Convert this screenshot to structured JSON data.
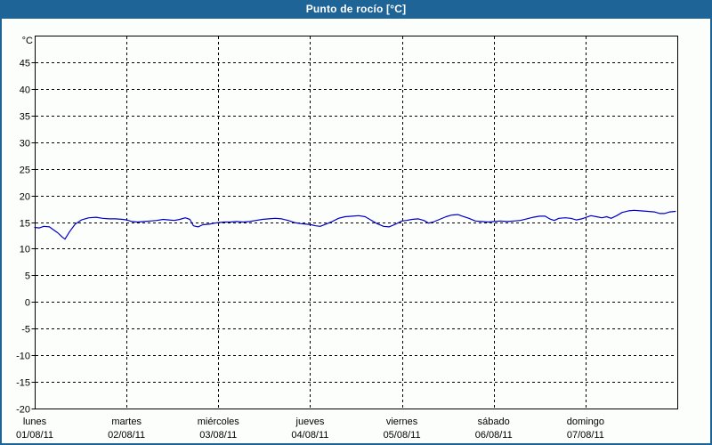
{
  "window": {
    "title": "Punto de rocío [°C]",
    "titlebar_color": "#1f6496",
    "border_color": "#1f6496",
    "background_color": "#fcfefb"
  },
  "chart_data": {
    "type": "line",
    "title": "Punto de rocío [°C]",
    "y_unit_label": "°C",
    "ylim": [
      -20,
      50
    ],
    "y_tick_step": 5,
    "y_tick_labels": [
      45,
      40,
      35,
      30,
      25,
      20,
      15,
      10,
      5,
      0,
      -5,
      -10,
      -15,
      -20
    ],
    "x_range": [
      0,
      7
    ],
    "x_categories": [
      {
        "name": "lunes",
        "date": "01/08/11"
      },
      {
        "name": "martes",
        "date": "02/08/11"
      },
      {
        "name": "miércoles",
        "date": "03/08/11"
      },
      {
        "name": "jueves",
        "date": "04/08/11"
      },
      {
        "name": "viernes",
        "date": "05/08/11"
      },
      {
        "name": "sábado",
        "date": "06/08/11"
      },
      {
        "name": "domingo",
        "date": "07/08/11"
      }
    ],
    "grid": "dashed",
    "legend": "none",
    "series": [
      {
        "name": "punto-de-rocio",
        "color": "#0000c8",
        "points": [
          [
            0.0,
            14.0
          ],
          [
            0.05,
            13.9
          ],
          [
            0.1,
            14.2
          ],
          [
            0.16,
            14.1
          ],
          [
            0.2,
            13.6
          ],
          [
            0.25,
            13.0
          ],
          [
            0.3,
            12.2
          ],
          [
            0.33,
            11.8
          ],
          [
            0.38,
            13.2
          ],
          [
            0.44,
            14.6
          ],
          [
            0.51,
            15.4
          ],
          [
            0.59,
            15.8
          ],
          [
            0.67,
            15.9
          ],
          [
            0.74,
            15.7
          ],
          [
            0.81,
            15.6
          ],
          [
            0.88,
            15.6
          ],
          [
            0.96,
            15.5
          ],
          [
            1.0,
            15.4
          ],
          [
            1.06,
            15.1
          ],
          [
            1.12,
            15.0
          ],
          [
            1.19,
            15.1
          ],
          [
            1.26,
            15.2
          ],
          [
            1.33,
            15.3
          ],
          [
            1.4,
            15.5
          ],
          [
            1.46,
            15.4
          ],
          [
            1.52,
            15.3
          ],
          [
            1.58,
            15.5
          ],
          [
            1.64,
            15.8
          ],
          [
            1.69,
            15.5
          ],
          [
            1.73,
            14.3
          ],
          [
            1.78,
            14.1
          ],
          [
            1.83,
            14.5
          ],
          [
            1.9,
            14.6
          ],
          [
            1.96,
            14.8
          ],
          [
            2.0,
            14.9
          ],
          [
            2.06,
            15.0
          ],
          [
            2.13,
            15.0
          ],
          [
            2.2,
            15.1
          ],
          [
            2.27,
            15.0
          ],
          [
            2.34,
            15.1
          ],
          [
            2.41,
            15.3
          ],
          [
            2.48,
            15.5
          ],
          [
            2.55,
            15.6
          ],
          [
            2.62,
            15.7
          ],
          [
            2.69,
            15.6
          ],
          [
            2.76,
            15.3
          ],
          [
            2.83,
            14.9
          ],
          [
            2.9,
            14.7
          ],
          [
            2.96,
            14.6
          ],
          [
            3.01,
            14.5
          ],
          [
            3.06,
            14.3
          ],
          [
            3.11,
            14.2
          ],
          [
            3.17,
            14.6
          ],
          [
            3.24,
            15.1
          ],
          [
            3.31,
            15.7
          ],
          [
            3.38,
            16.0
          ],
          [
            3.46,
            16.1
          ],
          [
            3.53,
            16.2
          ],
          [
            3.6,
            16.0
          ],
          [
            3.66,
            15.4
          ],
          [
            3.73,
            14.7
          ],
          [
            3.8,
            14.2
          ],
          [
            3.86,
            14.1
          ],
          [
            3.93,
            14.6
          ],
          [
            4.0,
            15.2
          ],
          [
            4.05,
            15.3
          ],
          [
            4.11,
            15.5
          ],
          [
            4.18,
            15.6
          ],
          [
            4.24,
            15.3
          ],
          [
            4.29,
            14.8
          ],
          [
            4.34,
            15.0
          ],
          [
            4.41,
            15.5
          ],
          [
            4.48,
            16.0
          ],
          [
            4.54,
            16.3
          ],
          [
            4.61,
            16.4
          ],
          [
            4.66,
            16.1
          ],
          [
            4.73,
            15.7
          ],
          [
            4.8,
            15.2
          ],
          [
            4.87,
            15.1
          ],
          [
            4.94,
            15.0
          ],
          [
            5.0,
            15.1
          ],
          [
            5.07,
            15.2
          ],
          [
            5.15,
            15.1
          ],
          [
            5.22,
            15.2
          ],
          [
            5.29,
            15.3
          ],
          [
            5.36,
            15.6
          ],
          [
            5.43,
            15.9
          ],
          [
            5.5,
            16.1
          ],
          [
            5.56,
            16.1
          ],
          [
            5.61,
            15.6
          ],
          [
            5.66,
            15.3
          ],
          [
            5.71,
            15.7
          ],
          [
            5.78,
            15.8
          ],
          [
            5.84,
            15.7
          ],
          [
            5.9,
            15.4
          ],
          [
            5.96,
            15.6
          ],
          [
            6.01,
            15.9
          ],
          [
            6.06,
            16.2
          ],
          [
            6.12,
            16.0
          ],
          [
            6.18,
            15.8
          ],
          [
            6.23,
            16.0
          ],
          [
            6.28,
            15.7
          ],
          [
            6.34,
            16.2
          ],
          [
            6.4,
            16.8
          ],
          [
            6.47,
            17.1
          ],
          [
            6.53,
            17.2
          ],
          [
            6.6,
            17.1
          ],
          [
            6.68,
            17.0
          ],
          [
            6.75,
            16.9
          ],
          [
            6.81,
            16.6
          ],
          [
            6.86,
            16.6
          ],
          [
            6.92,
            16.9
          ],
          [
            6.98,
            17.0
          ]
        ]
      }
    ]
  }
}
